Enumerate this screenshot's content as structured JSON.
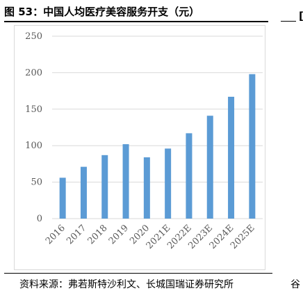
{
  "header": {
    "title": "图 53：中国人均医疗美容服务开支（元）",
    "cut_glyph": "["
  },
  "footer": {
    "source": "资料来源：弗若斯特沙利文、长城国瑞证券研究所",
    "cut_glyph": "谷"
  },
  "chart_data": {
    "type": "bar",
    "title": "中国人均医疗美容服务开支（元）",
    "categories": [
      "2016",
      "2017",
      "2018",
      "2019",
      "2020",
      "2021E",
      "2022E",
      "2023E",
      "2024E",
      "2025E"
    ],
    "values": [
      56,
      71,
      87,
      102,
      84,
      96,
      117,
      141,
      167,
      198
    ],
    "ylim": [
      0,
      250
    ],
    "yticks": [
      0,
      50,
      100,
      150,
      200,
      250
    ],
    "xlabel": "",
    "ylabel": "",
    "grid": true,
    "bar_color": "#5b9bd5",
    "grid_color": "#d9d9d9",
    "tick_label_color": "#595959"
  }
}
